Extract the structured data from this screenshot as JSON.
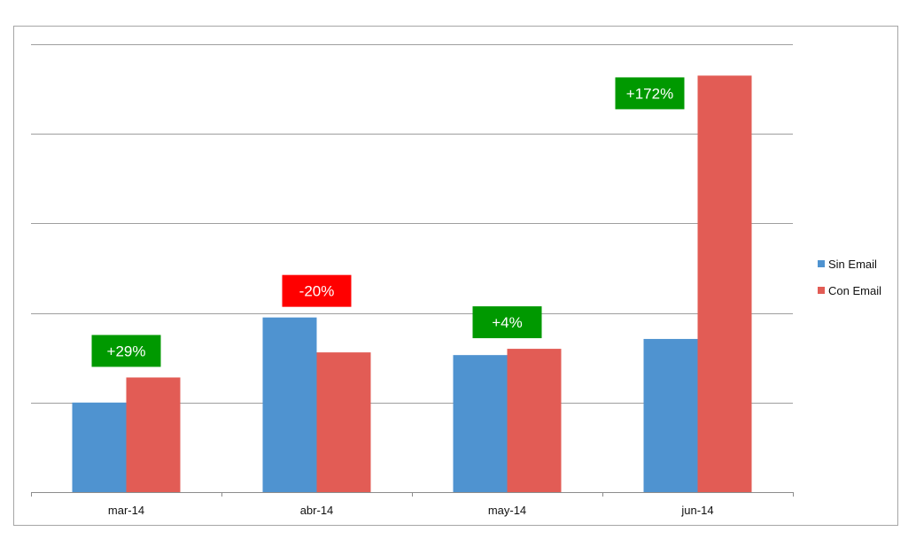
{
  "chart_data": {
    "type": "bar",
    "categories": [
      "mar-14",
      "abr-14",
      "may-14",
      "jun-14"
    ],
    "series": [
      {
        "name": "Sin Email",
        "values": [
          1.0,
          1.95,
          1.53,
          1.71
        ],
        "color": "#4F93D0"
      },
      {
        "name": "Con Email",
        "values": [
          1.28,
          1.56,
          1.6,
          4.65
        ],
        "color": "#E25C55"
      }
    ],
    "annotations": [
      {
        "category": "mar-14",
        "text": "+29%",
        "color": "#009900"
      },
      {
        "category": "abr-14",
        "text": "-20%",
        "color": "#FF0000"
      },
      {
        "category": "may-14",
        "text": "+4%",
        "color": "#009900"
      },
      {
        "category": "jun-14",
        "text": "+172%",
        "color": "#009900"
      }
    ],
    "ylim": [
      0,
      5
    ],
    "y_gridlines": [
      0,
      1,
      2,
      3,
      4,
      5
    ],
    "y_tick_labels_visible": false,
    "grid": true,
    "legend_position": "right",
    "title": "",
    "xlabel": "",
    "ylabel": ""
  }
}
